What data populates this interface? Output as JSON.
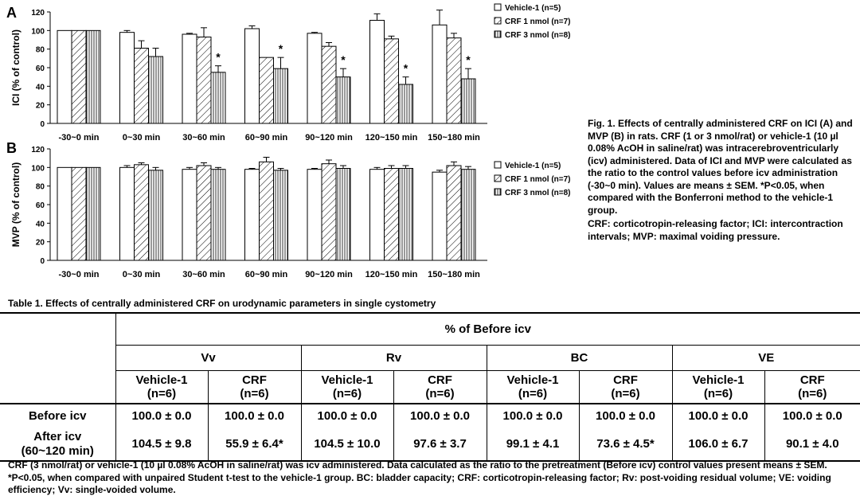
{
  "charts": [
    {
      "panel_letter": "A",
      "ylabel": "ICI (% of control)",
      "ylim": [
        0,
        120
      ],
      "yticks": [
        "0",
        "20",
        "40",
        "60",
        "80",
        "100",
        "120"
      ],
      "legend": [
        "Vehicle-1 (n=5)",
        "CRF 1 nmol (n=7)",
        "CRF 3 nmol (n=8)"
      ]
    },
    {
      "panel_letter": "B",
      "ylabel": "MVP (% of control)",
      "ylim": [
        0,
        120
      ],
      "yticks": [
        "0",
        "20",
        "40",
        "60",
        "80",
        "100",
        "120"
      ],
      "legend": [
        "Vehicle-1 (n=5)",
        "CRF 1 nmol (n=7)",
        "CRF 3 nmol (n=8)"
      ]
    }
  ],
  "chart_data": [
    {
      "type": "bar",
      "ylabel": "ICI (% of control)",
      "ylim": [
        0,
        120
      ],
      "categories": [
        "-30~0 min",
        "0~30 min",
        "30~60 min",
        "60~90 min",
        "90~120 min",
        "120~150 min",
        "150~180 min"
      ],
      "series": [
        {
          "name": "Vehicle-1 (n=5)",
          "values": [
            100,
            98,
            96,
            102,
            97,
            111,
            106
          ],
          "errors": [
            0,
            2,
            1,
            3,
            1,
            7,
            16
          ]
        },
        {
          "name": "CRF 1 nmol (n=7)",
          "values": [
            100,
            81,
            93,
            71,
            83,
            91,
            92
          ],
          "errors": [
            0,
            8,
            10,
            0,
            4,
            3,
            5
          ]
        },
        {
          "name": "CRF 3 nmol (n=8)",
          "values": [
            100,
            72,
            55,
            59,
            50,
            42,
            48
          ],
          "errors": [
            0,
            9,
            7,
            12,
            9,
            8,
            11
          ]
        }
      ],
      "annotations": [
        {
          "category": "30~60 min",
          "series": "CRF 3 nmol (n=8)",
          "text": "*"
        },
        {
          "category": "60~90 min",
          "series": "CRF 3 nmol (n=8)",
          "text": "*"
        },
        {
          "category": "90~120 min",
          "series": "CRF 3 nmol (n=8)",
          "text": "*"
        },
        {
          "category": "120~150 min",
          "series": "CRF 3 nmol (n=8)",
          "text": "*"
        },
        {
          "category": "150~180 min",
          "series": "CRF 3 nmol (n=8)",
          "text": "*"
        }
      ],
      "legend_position": "top-right",
      "grid": false
    },
    {
      "type": "bar",
      "ylabel": "MVP (% of control)",
      "ylim": [
        0,
        120
      ],
      "categories": [
        "-30~0 min",
        "0~30 min",
        "30~60 min",
        "60~90 min",
        "90~120 min",
        "120~150 min",
        "150~180 min"
      ],
      "series": [
        {
          "name": "Vehicle-1 (n=5)",
          "values": [
            100,
            100,
            98,
            98,
            98,
            98,
            95
          ],
          "errors": [
            0,
            2,
            2,
            1,
            1,
            2,
            2
          ]
        },
        {
          "name": "CRF 1 nmol (n=7)",
          "values": [
            100,
            103,
            102,
            106,
            104,
            99,
            102
          ],
          "errors": [
            0,
            2,
            3,
            5,
            4,
            3,
            4
          ]
        },
        {
          "name": "CRF 3 nmol (n=8)",
          "values": [
            100,
            97,
            98,
            97,
            99,
            99,
            98
          ],
          "errors": [
            0,
            3,
            2,
            2,
            3,
            3,
            3
          ]
        }
      ],
      "annotations": [],
      "legend_position": "top-right",
      "grid": false
    }
  ],
  "caption": {
    "p1": "Fig. 1. Effects of centrally administered CRF on ICI (A) and MVP (B) in rats.  CRF (1 or 3 nmol/rat) or vehicle-1 (10 µl 0.08% AcOH in saline/rat) was intracerebroventricularly (icv) administered.  Data of ICI and MVP were calculated as the ratio to the control values before icv administration (-30~0 min).  Values are means ± SEM.  *P<0.05, when compared with the Bonferroni method to the vehicle-1 group.",
    "p2": "CRF: corticotropin-releasing factor; ICI: intercontraction intervals; MVP: maximal voiding pressure."
  },
  "table": {
    "title": "Table 1. Effects of centrally administered CRF on urodynamic parameters in single cystometry",
    "main_header": "% of Before icv",
    "params": [
      "Vv",
      "Rv",
      "BC",
      "VE"
    ],
    "group_line1": [
      "Vehicle-1",
      "CRF",
      "Vehicle-1",
      "CRF",
      "Vehicle-1",
      "CRF",
      "Vehicle-1",
      "CRF"
    ],
    "group_line2": [
      "(n=6)",
      "(n=6)",
      "(n=6)",
      "(n=6)",
      "(n=6)",
      "(n=6)",
      "(n=6)",
      "(n=6)"
    ],
    "rows": [
      {
        "label_line1": "Before icv",
        "label_line2": "",
        "cells": [
          "100.0 ± 0.0",
          "100.0 ± 0.0",
          "100.0 ± 0.0",
          "100.0 ± 0.0",
          "100.0 ± 0.0",
          "100.0 ± 0.0",
          "100.0 ± 0.0",
          "100.0 ± 0.0"
        ]
      },
      {
        "label_line1": "After icv",
        "label_line2": "(60~120 min)",
        "cells": [
          "104.5 ± 9.8",
          "55.9 ± 6.4*",
          "104.5 ± 10.0",
          "97.6 ± 3.7",
          "99.1 ± 4.1",
          "73.6 ± 4.5*",
          "106.0 ± 6.7",
          "90.1 ± 4.0"
        ]
      }
    ]
  },
  "footnote": "CRF (3 nmol/rat) or vehicle-1 (10 µl 0.08% AcOH in saline/rat) was icv administered.  Data calculated as the ratio to the pretreatment (Before icv) control values present means ± SEM.  *P<0.05, when compared with unpaired Student t-test to the vehicle-1 group.  BC: bladder capacity; CRF: corticotropin-releasing factor; Rv: post-voiding residual volume; VE: voiding efficiency; Vv: single-voided volume."
}
